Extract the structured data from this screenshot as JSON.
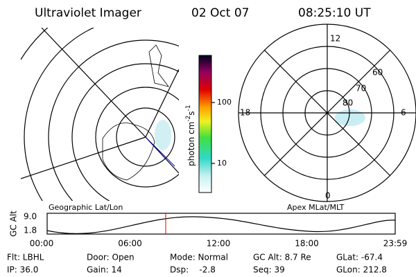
{
  "header": {
    "instrument": "Ultraviolet Imager",
    "date": "02 Oct 07",
    "time": "08:25:10 UT"
  },
  "colorbar": {
    "label": {
      "unit": "photon cm",
      "exp1": "-2",
      "unit2": "s",
      "exp2": "-1"
    },
    "ticks": [
      "100",
      "10"
    ]
  },
  "geographic": {
    "label": "Geographic Lat/Lon"
  },
  "apex": {
    "label": "Apex MLat/MLT",
    "mlt_labels": [
      "12",
      "6",
      "0",
      "18"
    ],
    "mlat_labels": [
      "60",
      "70",
      "80"
    ]
  },
  "altitude_plot": {
    "label": "GC Alt",
    "yticks": [
      "9.0",
      "1.8"
    ],
    "xticks": [
      "00:00",
      "06:00",
      "12:00",
      "18:00",
      "23:59"
    ]
  },
  "info": {
    "rows": [
      [
        "Flt: LBHL",
        "Door: Open",
        "Mode: Normal",
        "GC Alt: 8.7 Re",
        "GLat: -67.4"
      ],
      [
        "IP: 36.0",
        "Gain: 14",
        "Dsp:    -2.8",
        "Seq: 39",
        "GLon: 212.8"
      ]
    ]
  }
}
